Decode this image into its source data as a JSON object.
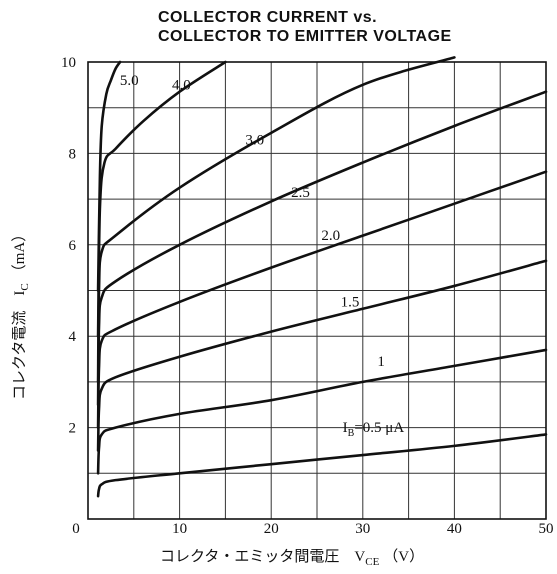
{
  "chart_data": {
    "type": "line",
    "title_lines": [
      "COLLECTOR CURRENT vs.",
      "COLLECTOR TO EMITTER VOLTAGE"
    ],
    "xlabel": "コレクタ・エミッタ間電圧　V",
    "xlabel_sub": "CE",
    "xlabel_unit": "（V）",
    "ylabel": "コレクタ電流　I",
    "ylabel_sub": "C",
    "ylabel_unit": "（mA）",
    "xlim": [
      0,
      50
    ],
    "ylim": [
      0,
      10
    ],
    "x_tick_labels": [
      "0",
      "10",
      "20",
      "30",
      "40",
      "50"
    ],
    "y_tick_labels": [
      "2",
      "4",
      "6",
      "8",
      "10"
    ],
    "grid": true,
    "series": [
      {
        "name": "IB=0.5 μA",
        "x": [
          1.1,
          1.2,
          1.5,
          3,
          10,
          20,
          30,
          40,
          50
        ],
        "y": [
          0.5,
          0.65,
          0.76,
          0.85,
          1.0,
          1.2,
          1.4,
          1.6,
          1.85
        ]
      },
      {
        "name": "1",
        "x": [
          1.1,
          1.2,
          1.5,
          3,
          10,
          20,
          30,
          40,
          50
        ],
        "y": [
          1.0,
          1.55,
          1.85,
          2.0,
          2.3,
          2.6,
          3.0,
          3.35,
          3.7
        ]
      },
      {
        "name": "1.5",
        "x": [
          1.1,
          1.2,
          1.5,
          3,
          10,
          20,
          30,
          40,
          50
        ],
        "y": [
          1.5,
          2.4,
          2.85,
          3.1,
          3.55,
          4.1,
          4.6,
          5.1,
          5.65
        ]
      },
      {
        "name": "2.0",
        "x": [
          1.1,
          1.2,
          1.5,
          3,
          10,
          20,
          30,
          40,
          50
        ],
        "y": [
          2.0,
          3.3,
          3.9,
          4.15,
          4.75,
          5.5,
          6.2,
          6.9,
          7.6
        ]
      },
      {
        "name": "2.5",
        "x": [
          1.1,
          1.2,
          1.5,
          3,
          10,
          20,
          30,
          40,
          50
        ],
        "y": [
          2.5,
          4.2,
          4.85,
          5.2,
          6.0,
          6.95,
          7.8,
          8.6,
          9.35
        ]
      },
      {
        "name": "3.0",
        "x": [
          1.1,
          1.2,
          1.5,
          3,
          10,
          20,
          30,
          40
        ],
        "y": [
          3.0,
          5.0,
          5.85,
          6.2,
          7.25,
          8.45,
          9.5,
          10.1
        ]
      },
      {
        "name": "4.0",
        "x": [
          1.1,
          1.3,
          1.8,
          3,
          6,
          10,
          15
        ],
        "y": [
          4.0,
          6.8,
          7.8,
          8.1,
          8.7,
          9.35,
          10.0
        ]
      },
      {
        "name": "5.0",
        "x": [
          1.1,
          1.3,
          1.5,
          2,
          2.5,
          3,
          3.5
        ],
        "y": [
          5.0,
          7.5,
          8.6,
          9.3,
          9.6,
          9.85,
          10.0
        ]
      }
    ],
    "curve_labels": [
      {
        "text": "5.0",
        "x": 4.5,
        "y": 9.5
      },
      {
        "text": "4.0",
        "x": 10.2,
        "y": 9.4
      },
      {
        "text": "3.0",
        "x": 18.2,
        "y": 8.2
      },
      {
        "text": "2.5",
        "x": 23.2,
        "y": 7.05
      },
      {
        "text": "2.0",
        "x": 26.5,
        "y": 6.1
      },
      {
        "text": "1.5",
        "x": 28.6,
        "y": 4.65
      },
      {
        "text": "1",
        "x": 32.0,
        "y": 3.35
      },
      {
        "text": "I",
        "x": 27.8,
        "y": 1.9
      }
    ],
    "ib_label": {
      "prefix": "I",
      "sub": "B",
      "text": "=0.5 μA"
    }
  }
}
